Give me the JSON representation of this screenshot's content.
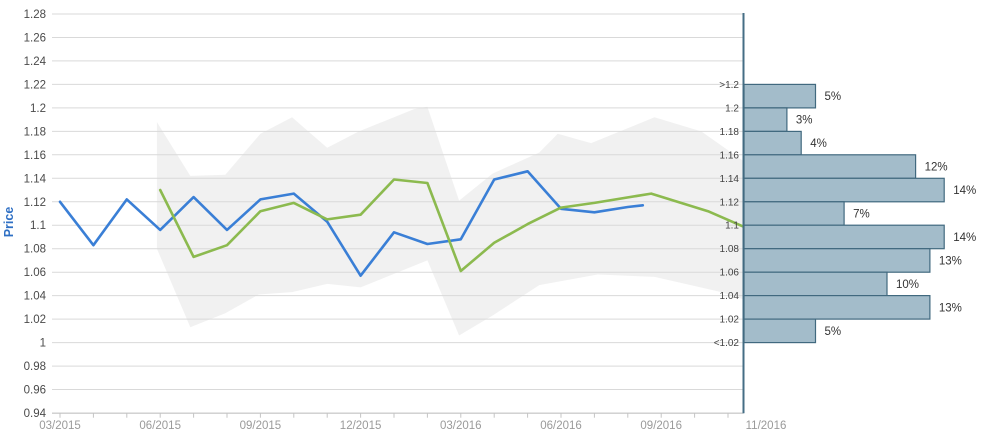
{
  "chart": {
    "y_axis_title": "Price",
    "colors": {
      "actual_line": "#3a7fd6",
      "forecast_line": "#8cba4f",
      "band_fill": "rgba(0,0,0,0.055)",
      "grid": "#d9d9d9",
      "axis_line": "#c4c4c4",
      "y_tick_text": "#4a4a4a",
      "x_tick_text": "#9a9a9a",
      "y_title_text": "#2e6fc4",
      "hist_bar_fill": "#a3bcca",
      "hist_bar_border": "#41697f",
      "hist_axis": "#456e85",
      "hist_bin_text": "#444444",
      "hist_pct_text": "#333333"
    }
  },
  "chart_data": [
    {
      "type": "line",
      "ylabel": "Price",
      "ylim": [
        0.94,
        1.28
      ],
      "y_tick_step": 0.02,
      "grid": true,
      "legend": "none",
      "y_ticks": [
        "1.28",
        "1.26",
        "1.24",
        "1.22",
        "1.2",
        "1.18",
        "1.16",
        "1.14",
        "1.12",
        "1.1",
        "1.08",
        "1.06",
        "1.04",
        "1.02",
        "1",
        "0.98",
        "0.96",
        "0.94"
      ],
      "x_unit": "months since 03/2015",
      "x_labels": [
        {
          "text": "03/2015",
          "m": 0
        },
        {
          "text": "06/2015",
          "m": 3
        },
        {
          "text": "09/2015",
          "m": 6
        },
        {
          "text": "12/2015",
          "m": 9
        },
        {
          "text": "03/2016",
          "m": 12
        },
        {
          "text": "06/2016",
          "m": 15
        },
        {
          "text": "09/2016",
          "m": 18
        },
        {
          "text": "11/2016",
          "m": 20,
          "x": 766
        }
      ],
      "series": [
        {
          "name": "price-actual",
          "color": "#3a7fd6",
          "points": [
            [
              0,
              1.12
            ],
            [
              1,
              1.083
            ],
            [
              2,
              1.122
            ],
            [
              3,
              1.096
            ],
            [
              4,
              1.124
            ],
            [
              5,
              1.096
            ],
            [
              6,
              1.122
            ],
            [
              7,
              1.127
            ],
            [
              8,
              1.103
            ],
            [
              9,
              1.057
            ],
            [
              10,
              1.094
            ],
            [
              11,
              1.084
            ],
            [
              12,
              1.088
            ],
            [
              13,
              1.139
            ],
            [
              14,
              1.146
            ],
            [
              15,
              1.114
            ],
            [
              16,
              1.111
            ],
            [
              17,
              1.1155
            ],
            [
              17.45,
              1.117
            ]
          ]
        },
        {
          "name": "price-forecast",
          "color": "#8cba4f",
          "points": [
            [
              3,
              1.13
            ],
            [
              4,
              1.073
            ],
            [
              5,
              1.083
            ],
            [
              6,
              1.112
            ],
            [
              7,
              1.119
            ],
            [
              8,
              1.105
            ],
            [
              9,
              1.109
            ],
            [
              10,
              1.139
            ],
            [
              11,
              1.136
            ],
            [
              12,
              1.061
            ],
            [
              13,
              1.085
            ],
            [
              14,
              1.101
            ],
            [
              15,
              1.115
            ],
            [
              16,
              1.119
            ],
            [
              17.7,
              1.127
            ],
            [
              19.4,
              1.112
            ],
            [
              20.45,
              1.099
            ]
          ]
        }
      ],
      "band": {
        "name": "forecast-range",
        "fill": "rgba(0,0,0,0.055)",
        "top": [
          [
            2.9,
            1.188
          ],
          [
            3.9,
            1.142
          ],
          [
            4.95,
            1.143
          ],
          [
            6.0,
            1.178
          ],
          [
            6.95,
            1.192
          ],
          [
            8.0,
            1.166
          ],
          [
            8.95,
            1.18
          ],
          [
            10.6,
            1.199
          ],
          [
            11.0,
            1.201
          ],
          [
            11.95,
            1.121
          ],
          [
            12.95,
            1.144
          ],
          [
            14.35,
            1.162
          ],
          [
            14.9,
            1.178
          ],
          [
            15.9,
            1.17
          ],
          [
            17.8,
            1.192
          ],
          [
            19.2,
            1.18
          ],
          [
            20.45,
            1.155
          ]
        ],
        "bottom": [
          [
            20.45,
            1.037
          ],
          [
            19.8,
            1.043
          ],
          [
            17.8,
            1.056
          ],
          [
            16.1,
            1.058
          ],
          [
            14.35,
            1.049
          ],
          [
            12.95,
            1.023
          ],
          [
            11.95,
            1.006
          ],
          [
            11.0,
            1.07
          ],
          [
            9.0,
            1.047
          ],
          [
            8.0,
            1.05
          ],
          [
            6.95,
            1.043
          ],
          [
            5.95,
            1.041
          ],
          [
            4.95,
            1.025
          ],
          [
            3.9,
            1.013
          ],
          [
            2.9,
            1.08
          ]
        ]
      }
    },
    {
      "type": "bar",
      "orientation": "horizontal",
      "title": "",
      "x_label_under": "11/2016",
      "bin_edge_labels": [
        ">1.2",
        "1.2",
        "1.18",
        "1.16",
        "1.14",
        "1.12",
        "1.1",
        "1.08",
        "1.06",
        "1.04",
        "1.02",
        "<1.02"
      ],
      "bin_edge_prices": [
        1.22,
        1.2,
        1.18,
        1.16,
        1.14,
        1.12,
        1.1,
        1.08,
        1.06,
        1.04,
        1.02,
        1.0
      ],
      "values_pct": [
        5,
        3,
        4,
        12,
        14,
        7,
        14,
        13,
        10,
        13,
        5
      ],
      "value_suffix": "%"
    }
  ]
}
